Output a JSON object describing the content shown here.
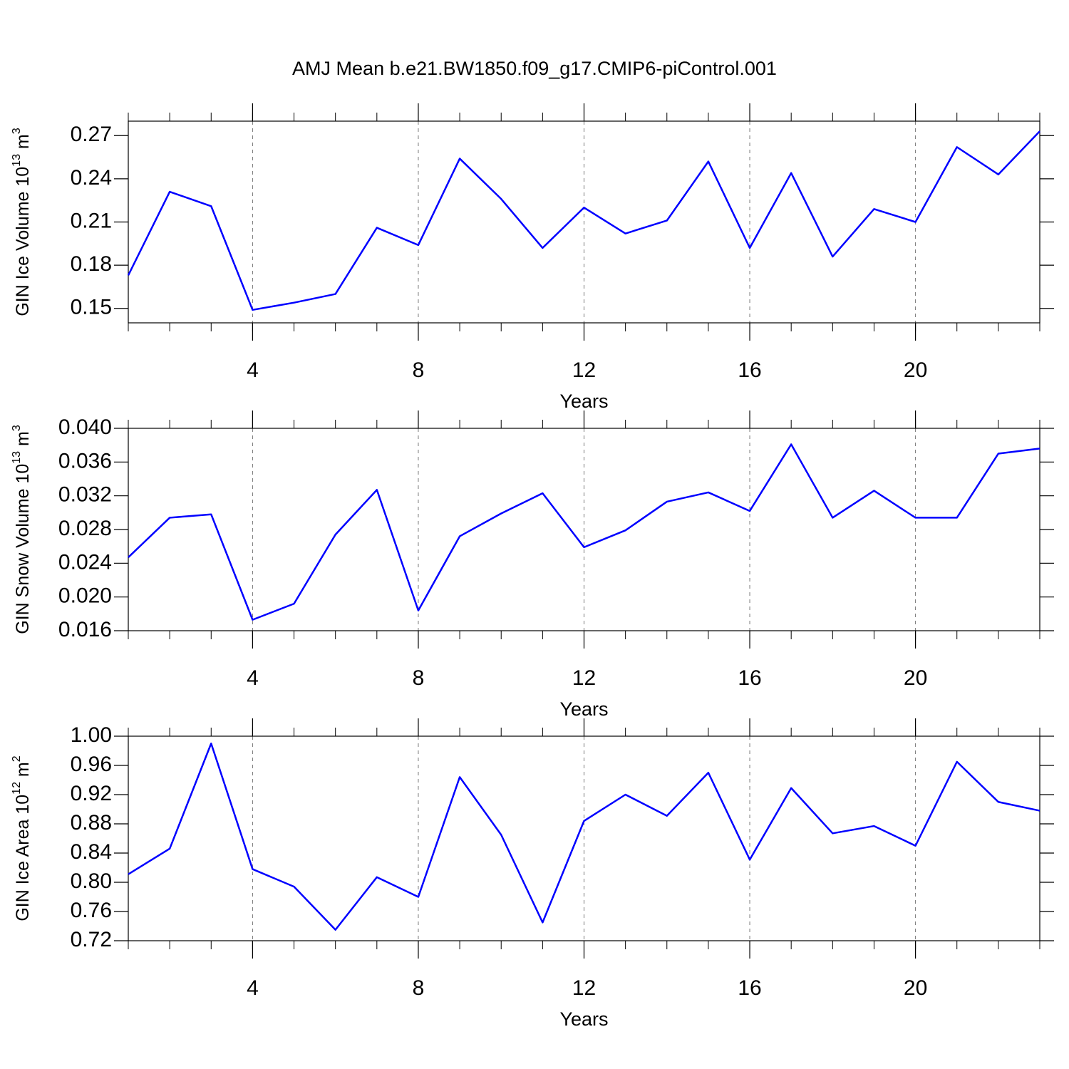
{
  "chart_data": [
    {
      "type": "line",
      "title": "AMJ Mean b.e21.BW1850.f09_g17.CMIP6-piControl.001",
      "x": [
        1,
        2,
        3,
        4,
        5,
        6,
        7,
        8,
        9,
        10,
        11,
        12,
        13,
        14,
        15,
        16,
        17,
        18,
        19,
        20,
        21,
        22,
        23
      ],
      "values": [
        0.173,
        0.231,
        0.221,
        0.149,
        0.154,
        0.16,
        0.206,
        0.194,
        0.254,
        0.226,
        0.192,
        0.22,
        0.202,
        0.211,
        0.252,
        0.192,
        0.244,
        0.186,
        0.219,
        0.21,
        0.262,
        0.243,
        0.273
      ],
      "color": "#0000ff",
      "xlim": [
        1,
        23
      ],
      "xticks": [
        4,
        8,
        12,
        16,
        20
      ],
      "ylim": [
        0.14,
        0.28
      ],
      "yticks": [
        0.15,
        0.18,
        0.21,
        0.24,
        0.27
      ],
      "xlabel": "Years",
      "ylabel": [
        "GIN Ice Volume 10",
        "13",
        " m",
        "3"
      ],
      "grid": true
    },
    {
      "type": "line",
      "x": [
        1,
        2,
        3,
        4,
        5,
        6,
        7,
        8,
        9,
        10,
        11,
        12,
        13,
        14,
        15,
        16,
        17,
        18,
        19,
        20,
        21,
        22,
        23
      ],
      "values": [
        0.0247,
        0.0294,
        0.0298,
        0.0173,
        0.0192,
        0.0274,
        0.0327,
        0.0184,
        0.0272,
        0.0299,
        0.0323,
        0.0259,
        0.0279,
        0.0313,
        0.0324,
        0.0302,
        0.0381,
        0.0294,
        0.0326,
        0.0294,
        0.0294,
        0.037,
        0.0376
      ],
      "color": "#0000ff",
      "xlim": [
        1,
        23
      ],
      "xticks": [
        4,
        8,
        12,
        16,
        20
      ],
      "ylim": [
        0.016,
        0.04
      ],
      "yticks": [
        0.016,
        {
          "value": 0.02,
          "label": "0.020"
        },
        0.024,
        0.028,
        0.032,
        0.036,
        {
          "value": 0.04,
          "label": "0.040"
        }
      ],
      "xlabel": "Years",
      "ylabel": [
        "GIN Snow Volume 10",
        "13",
        " m",
        "3"
      ],
      "grid": true
    },
    {
      "type": "line",
      "x": [
        1,
        2,
        3,
        4,
        5,
        6,
        7,
        8,
        9,
        10,
        11,
        12,
        13,
        14,
        15,
        16,
        17,
        18,
        19,
        20,
        21,
        22,
        23
      ],
      "values": [
        0.811,
        0.846,
        0.99,
        0.818,
        0.794,
        0.735,
        0.807,
        0.78,
        0.944,
        0.865,
        0.745,
        0.884,
        0.92,
        0.891,
        0.95,
        0.831,
        0.929,
        0.867,
        0.877,
        0.85,
        0.965,
        0.91,
        0.898
      ],
      "color": "#0000ff",
      "xlim": [
        1,
        23
      ],
      "xticks": [
        4,
        8,
        12,
        16,
        20
      ],
      "ylim": [
        0.72,
        1.0
      ],
      "yticks": [
        0.72,
        0.76,
        {
          "value": 0.8,
          "label": "0.80"
        },
        0.84,
        0.88,
        0.92,
        0.96,
        {
          "value": 1.0,
          "label": "1.00"
        }
      ],
      "xlabel": "Years",
      "ylabel": [
        "GIN Ice Area 10",
        "12",
        " m",
        "2"
      ],
      "grid": true
    }
  ]
}
